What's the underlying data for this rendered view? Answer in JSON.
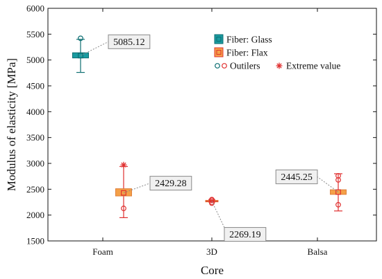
{
  "chart_data": {
    "type": "box",
    "title": "",
    "xlabel": "Core",
    "ylabel": "Modulus of elasticity [MPa]",
    "ylim": [
      1500,
      6000
    ],
    "yticks": [
      1500,
      2000,
      2500,
      3000,
      3500,
      4000,
      4500,
      5000,
      5500,
      6000
    ],
    "categories": [
      "Foam",
      "3D",
      "Balsa"
    ],
    "grid": false,
    "legend_position": "top-right",
    "legend": {
      "series": [
        {
          "name": "Fiber: Glass",
          "color": "#1a9ba0",
          "edge": "#0c6e72"
        },
        {
          "name": "Fiber: Flax",
          "color": "#f4a048",
          "edge": "#e03030"
        }
      ],
      "markers": [
        {
          "name": "Outilers",
          "symbol": "circle"
        },
        {
          "name": "Extreme value",
          "symbol": "asterisk"
        }
      ]
    },
    "boxes": [
      {
        "series": "Fiber: Glass",
        "category": "Foam",
        "median": 5085.12,
        "q1": 5040,
        "q3": 5140,
        "whisker_low": 4760,
        "whisker_high": 5400,
        "outliers": [
          5420
        ],
        "extremes": [],
        "label": "5085.12"
      },
      {
        "series": "Fiber: Flax",
        "category": "Foam",
        "median": 2429.28,
        "q1": 2370,
        "q3": 2510,
        "whisker_low": 1950,
        "whisker_high": 2940,
        "outliers": [
          2130
        ],
        "extremes": [
          2970
        ],
        "label": "2429.28"
      },
      {
        "series": "Fiber: Flax",
        "category": "3D",
        "median": 2269.19,
        "q1": 2255,
        "q3": 2285,
        "whisker_low": 2250,
        "whisker_high": 2300,
        "outliers": [
          2230,
          2250,
          2285,
          2300
        ],
        "extremes": [],
        "label": "2269.19"
      },
      {
        "series": "Fiber: Flax",
        "category": "Balsa",
        "median": 2445.25,
        "q1": 2400,
        "q3": 2490,
        "whisker_low": 2080,
        "whisker_high": 2800,
        "outliers": [
          2200,
          2680,
          2760
        ],
        "extremes": [],
        "label": "2445.25"
      }
    ]
  }
}
